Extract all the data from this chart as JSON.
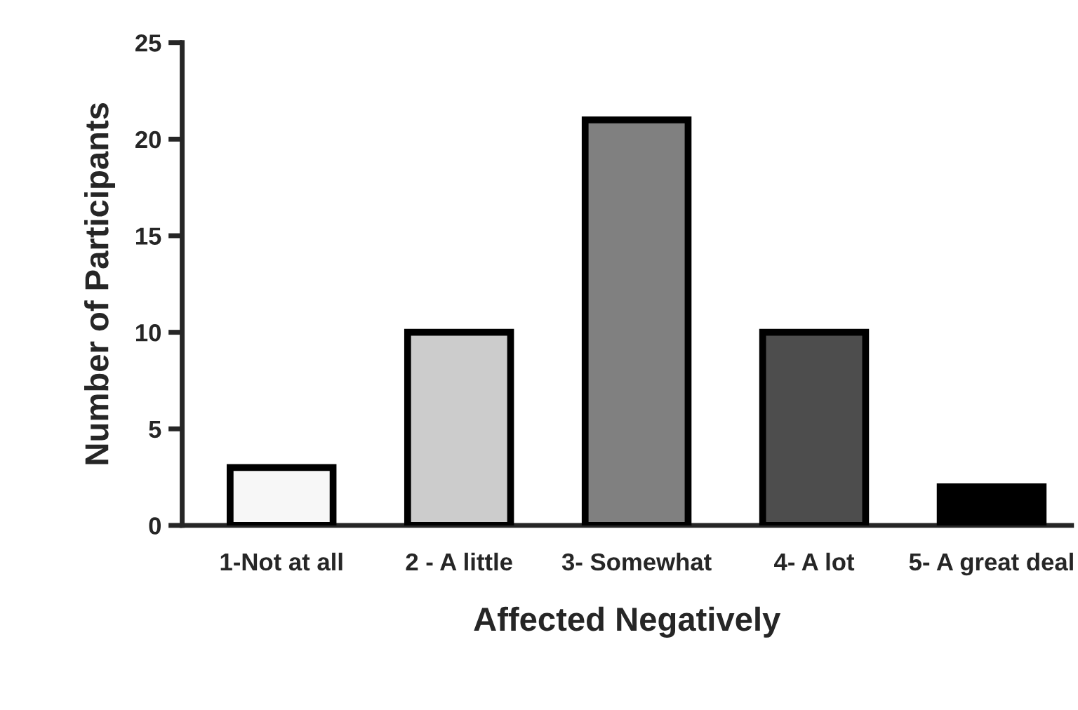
{
  "chart_data": {
    "type": "bar",
    "xlabel": "Affected Negatively",
    "ylabel": "Number of Participants",
    "categories": [
      "1-Not at all",
      "2 - A little",
      "3- Somewhat",
      "4- A lot",
      "5- A great deal"
    ],
    "values": [
      3,
      10,
      21,
      10,
      2
    ],
    "colors": [
      "#f7f7f7",
      "#cccccc",
      "#808080",
      "#4d4d4d",
      "#000000"
    ],
    "ylim": [
      0,
      25
    ],
    "yticks": [
      0,
      5,
      10,
      15,
      20,
      25
    ],
    "grid": false,
    "legend": false
  }
}
